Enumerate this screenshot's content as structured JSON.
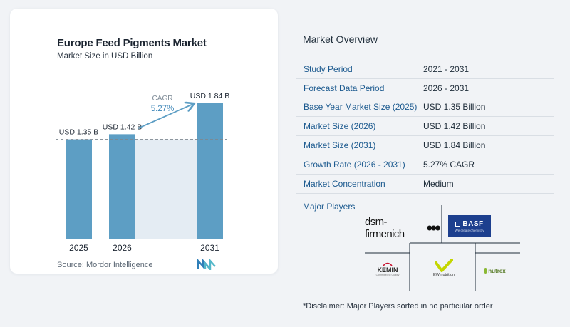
{
  "chart": {
    "title": "Europe Feed Pigments Market",
    "subtitle": "Market Size in USD Billion",
    "source": "Source:  Mordor Intelligence"
  },
  "chart_data": {
    "type": "bar",
    "categories": [
      "2025",
      "2026",
      "2031"
    ],
    "values": [
      1.35,
      1.42,
      1.84
    ],
    "value_labels": [
      "USD 1.35 B",
      "USD 1.42 B",
      "USD 1.84 B"
    ],
    "title": "Europe Feed Pigments Market",
    "ylabel": "Market Size in USD Billion",
    "ylim": [
      0,
      1.84
    ],
    "annotation": {
      "label": "CAGR",
      "value": "5.27%"
    },
    "colors": {
      "bar": "#5d9ec4",
      "bar_top": "#4e8fb8",
      "band": "#e4ecf3",
      "arrow": "#5d9ec4"
    }
  },
  "overview": {
    "title": "Market Overview",
    "rows": [
      {
        "label": "Study Period",
        "value": "2021 - 2031"
      },
      {
        "label": "Forecast Data Period",
        "value": "2026 - 2031"
      },
      {
        "label": "Base Year Market Size (2025)",
        "value": "USD 1.35 Billion"
      },
      {
        "label": "Market Size (2026)",
        "value": "USD 1.42 Billion"
      },
      {
        "label": "Market Size (2031)",
        "value": "USD 1.84 Billion"
      },
      {
        "label": "Growth Rate (2026 - 2031)",
        "value": "5.27% CAGR"
      },
      {
        "label": "Market Concentration",
        "value": "Medium"
      }
    ]
  },
  "players": {
    "title": "Major Players",
    "logos": {
      "dsm": "dsm-firmenich",
      "basf": "BASF",
      "basf_tagline": "We create chemistry",
      "kemin": "KEMIN",
      "kemin_tagline": "Committed to Quality",
      "ew": "EW nutrition",
      "nutrex": "nutrex"
    }
  },
  "disclaimer": "*Disclaimer: Major Players sorted in no particular order"
}
